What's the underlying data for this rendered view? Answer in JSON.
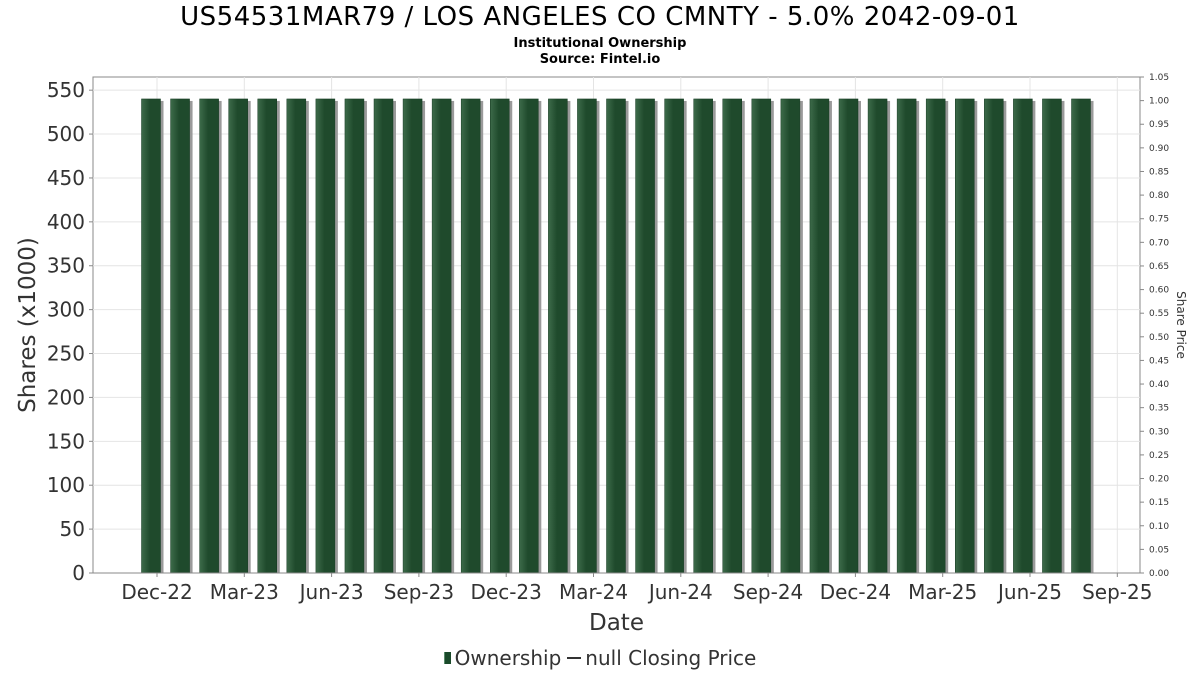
{
  "header": {
    "title": "US54531MAR79 / LOS ANGELES CO CMNTY - 5.0% 2042-09-01",
    "subtitle": "Institutional Ownership",
    "source": "Source: Fintel.io"
  },
  "legend": {
    "ownership_label": "Ownership",
    "price_label": "null Closing Price"
  },
  "colors": {
    "bar": "#1f4a2c",
    "bar_highlight": "#3d6b4a",
    "bar_shadow": "#9a9a9a",
    "grid": "#e4e4e4",
    "axis": "#888888"
  },
  "chart_data": {
    "type": "bar",
    "title": "US54531MAR79 / LOS ANGELES CO CMNTY - 5.0% 2042-09-01",
    "xlabel": "Date",
    "ylabel": "Shares (x1000)",
    "y2label": "Share Price",
    "ylim": [
      0,
      565
    ],
    "y2lim": [
      0,
      1.05
    ],
    "yticks": [
      "0",
      "50",
      "100",
      "150",
      "200",
      "250",
      "300",
      "350",
      "400",
      "450",
      "500",
      "550"
    ],
    "y2ticks": [
      "0.00",
      "0.05",
      "0.10",
      "0.15",
      "0.20",
      "0.25",
      "0.30",
      "0.35",
      "0.40",
      "0.45",
      "0.50",
      "0.55",
      "0.60",
      "0.65",
      "0.70",
      "0.75",
      "0.80",
      "0.85",
      "0.90",
      "0.95",
      "1.00",
      "1.05"
    ],
    "xtick_labels": [
      "Dec-22",
      "Mar-23",
      "Jun-23",
      "Sep-23",
      "Dec-23",
      "Mar-24",
      "Jun-24",
      "Sep-24",
      "Dec-24",
      "Mar-25",
      "Jun-25",
      "Sep-25"
    ],
    "grid": true,
    "legend_position": "bottom",
    "series": [
      {
        "name": "Ownership",
        "values": [
          540,
          540,
          540,
          540,
          540,
          540,
          540,
          540,
          540,
          540,
          540,
          540,
          540,
          540,
          540,
          540,
          540,
          540,
          540,
          540,
          540,
          540,
          540,
          540,
          540,
          540,
          540,
          540,
          540,
          540,
          540,
          540,
          540
        ]
      }
    ]
  }
}
